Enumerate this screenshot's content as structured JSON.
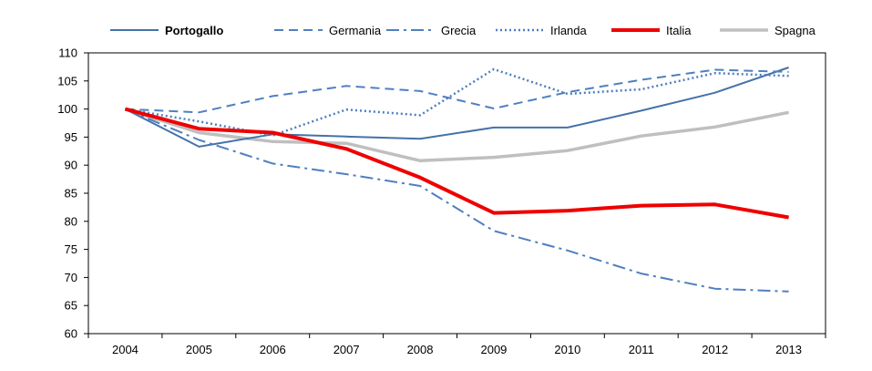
{
  "chart_data": {
    "type": "line",
    "title": "",
    "xlabel": "",
    "ylabel": "",
    "categories": [
      "2004",
      "2005",
      "2006",
      "2007",
      "2008",
      "2009",
      "2010",
      "2011",
      "2012",
      "2013"
    ],
    "ylim": [
      60,
      110
    ],
    "yticks": [
      60,
      65,
      70,
      75,
      80,
      85,
      90,
      95,
      100,
      105,
      110
    ],
    "grid": false,
    "legend_position": "top",
    "series": [
      {
        "name": "Portogallo",
        "color": "#4472a8",
        "style": "solid",
        "bold_label": true,
        "values": [
          100,
          93.3,
          95.5,
          95.1,
          94.7,
          96.7,
          96.7,
          99.7,
          102.9,
          107.4
        ]
      },
      {
        "name": "Germania",
        "color": "#4f7fc0",
        "style": "dashed",
        "values": [
          100,
          99.4,
          102.3,
          104.1,
          103.2,
          100.1,
          103.0,
          105.2,
          107.0,
          106.6
        ]
      },
      {
        "name": "Grecia",
        "color": "#4f7fc0",
        "style": "dashdot",
        "values": [
          100,
          94.5,
          90.3,
          88.4,
          86.3,
          78.3,
          74.8,
          70.7,
          68.0,
          67.5
        ]
      },
      {
        "name": "Irlanda",
        "color": "#4f7fc0",
        "style": "dotted",
        "values": [
          100,
          97.8,
          95.3,
          99.9,
          98.9,
          107.1,
          102.7,
          103.5,
          106.4,
          105.9
        ]
      },
      {
        "name": "Italia",
        "color": "#ee0000",
        "style": "thick",
        "values": [
          100,
          96.5,
          95.8,
          92.9,
          87.8,
          81.5,
          81.9,
          82.8,
          83.0,
          80.7
        ]
      },
      {
        "name": "Spagna",
        "color": "#bfbfbf",
        "style": "thick",
        "values": [
          100,
          95.8,
          94.2,
          93.9,
          90.8,
          91.4,
          92.6,
          95.2,
          96.8,
          99.4
        ]
      }
    ]
  }
}
